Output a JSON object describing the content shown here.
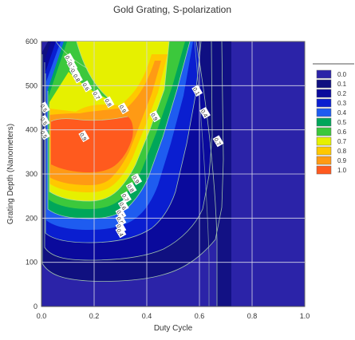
{
  "chart_data": {
    "type": "contour",
    "title": "Gold Grating, S-polarization",
    "xlabel": "Duty Cycle",
    "ylabel": "Grating Depth (Nanometers)",
    "xlim": [
      0.0,
      1.0
    ],
    "ylim": [
      0,
      600
    ],
    "x_ticks": [
      "0.0",
      "0.2",
      "0.4",
      "0.6",
      "0.8",
      "1.0"
    ],
    "y_ticks": [
      "0",
      "100",
      "200",
      "300",
      "400",
      "500",
      "600"
    ],
    "grid": true,
    "legend_position": "right",
    "legend": [
      {
        "label": "0.0",
        "color": "#2b23a8"
      },
      {
        "label": "0.1",
        "color": "#101080"
      },
      {
        "label": "0.2",
        "color": "#0a0a9c"
      },
      {
        "label": "0.3",
        "color": "#0a1ed0"
      },
      {
        "label": "0.4",
        "color": "#1e5cf0"
      },
      {
        "label": "0.5",
        "color": "#00a65a"
      },
      {
        "label": "0.6",
        "color": "#3cc83c"
      },
      {
        "label": "0.7",
        "color": "#e6f000"
      },
      {
        "label": "0.8",
        "color": "#ffc800"
      },
      {
        "label": "0.9",
        "color": "#ff9a14"
      },
      {
        "label": "1.0",
        "color": "#ff5a1e"
      }
    ],
    "contour_labels": [
      {
        "text": "0.7",
        "x": 0.105,
        "y": 560
      },
      {
        "text": "0.7",
        "x": 0.115,
        "y": 545
      },
      {
        "text": "0.7",
        "x": 0.125,
        "y": 530
      },
      {
        "text": "0.8",
        "x": 0.135,
        "y": 518
      },
      {
        "text": "0.6",
        "x": 0.17,
        "y": 498
      },
      {
        "text": "0.7",
        "x": 0.21,
        "y": 478
      },
      {
        "text": "0.8",
        "x": 0.255,
        "y": 462
      },
      {
        "text": "0.9",
        "x": 0.31,
        "y": 448
      },
      {
        "text": "0.9",
        "x": 0.43,
        "y": 430
      },
      {
        "text": "0.9",
        "x": 0.16,
        "y": 385
      },
      {
        "text": "0.1",
        "x": 0.59,
        "y": 488
      },
      {
        "text": "0.4",
        "x": 0.62,
        "y": 438
      },
      {
        "text": "0.7",
        "x": 0.67,
        "y": 374
      },
      {
        "text": "0.5",
        "x": 0.01,
        "y": 450
      },
      {
        "text": "0.5",
        "x": 0.01,
        "y": 420
      },
      {
        "text": "0.5",
        "x": 0.01,
        "y": 390
      },
      {
        "text": "0.9",
        "x": 0.36,
        "y": 288
      },
      {
        "text": "0.8",
        "x": 0.34,
        "y": 268
      },
      {
        "text": "0.7",
        "x": 0.32,
        "y": 247
      },
      {
        "text": "0.6",
        "x": 0.31,
        "y": 228
      },
      {
        "text": "0.5",
        "x": 0.3,
        "y": 210
      },
      {
        "text": "0.5",
        "x": 0.3,
        "y": 195
      },
      {
        "text": "0.4",
        "x": 0.3,
        "y": 178
      },
      {
        "text": "0.4",
        "x": 0.3,
        "y": 168
      }
    ]
  }
}
